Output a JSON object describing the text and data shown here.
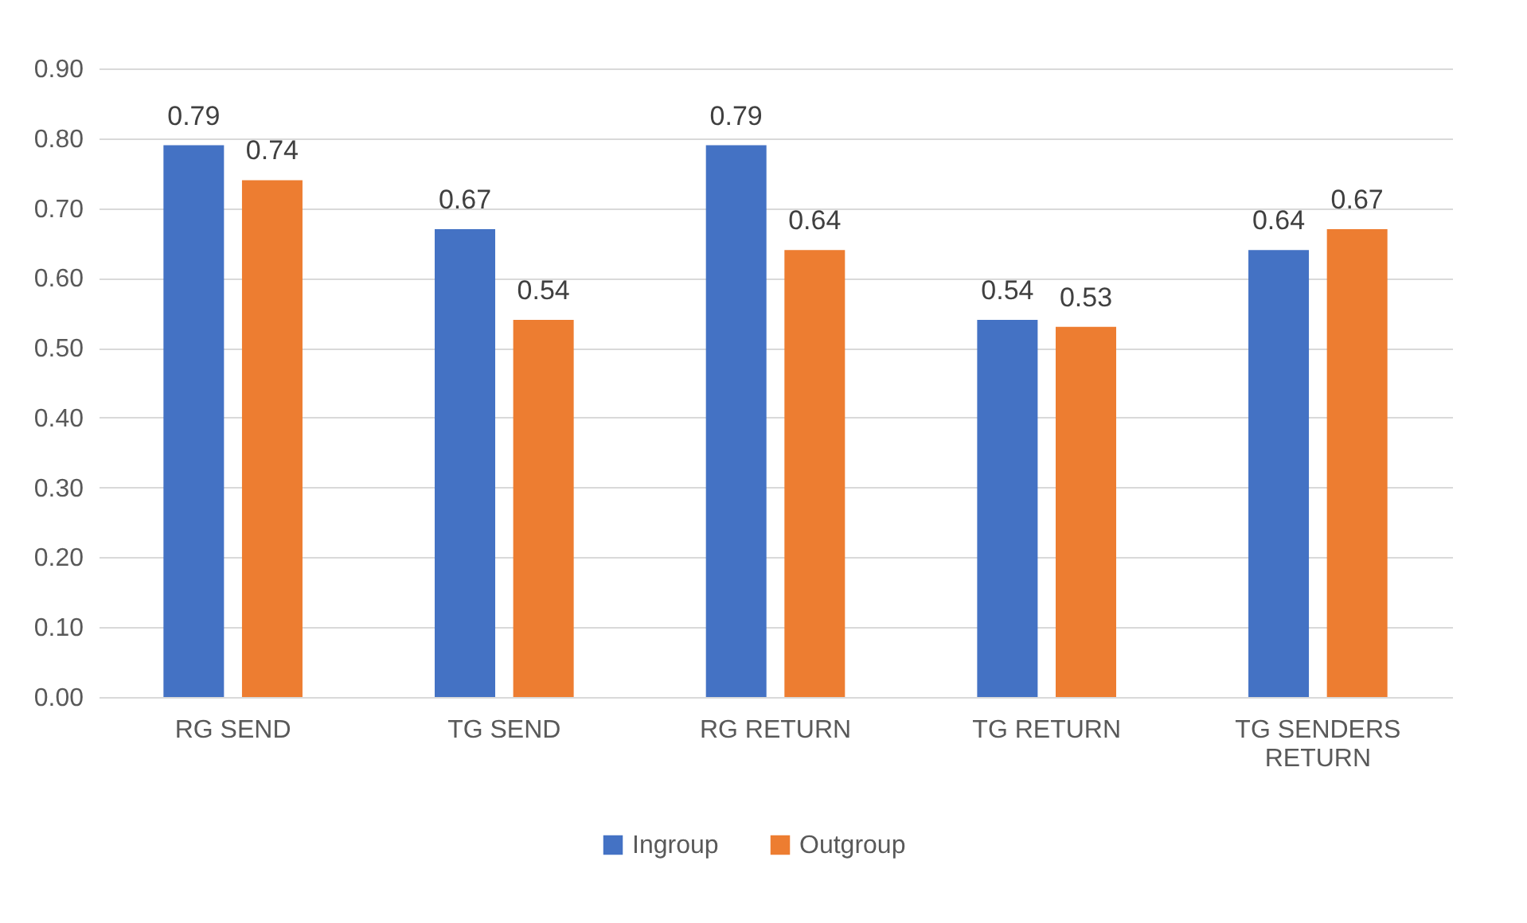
{
  "chart_data": {
    "type": "bar",
    "categories": [
      "RG SEND",
      "TG SEND",
      "RG RETURN",
      "TG RETURN",
      "TG SENDERS RETURN"
    ],
    "series": [
      {
        "name": "Ingroup",
        "color": "#4472c4",
        "values": [
          0.79,
          0.67,
          0.79,
          0.54,
          0.64
        ]
      },
      {
        "name": "Outgroup",
        "color": "#ed7d31",
        "values": [
          0.74,
          0.54,
          0.64,
          0.53,
          0.67
        ]
      }
    ],
    "ylim": [
      0,
      0.9
    ],
    "yticks": [
      {
        "value": 0,
        "label": "0.00"
      },
      {
        "value": 0.1,
        "label": "0.10"
      },
      {
        "value": 0.2,
        "label": "0.20"
      },
      {
        "value": 0.3,
        "label": "0.30"
      },
      {
        "value": 0.4,
        "label": "0.40"
      },
      {
        "value": 0.5,
        "label": "0.50"
      },
      {
        "value": 0.6,
        "label": "0.60"
      },
      {
        "value": 0.7,
        "label": "0.70"
      },
      {
        "value": 0.8,
        "label": "0.80"
      },
      {
        "value": 0.9,
        "label": "0.90"
      }
    ],
    "grid": "y",
    "legend": "bottom",
    "data_labels": true
  }
}
